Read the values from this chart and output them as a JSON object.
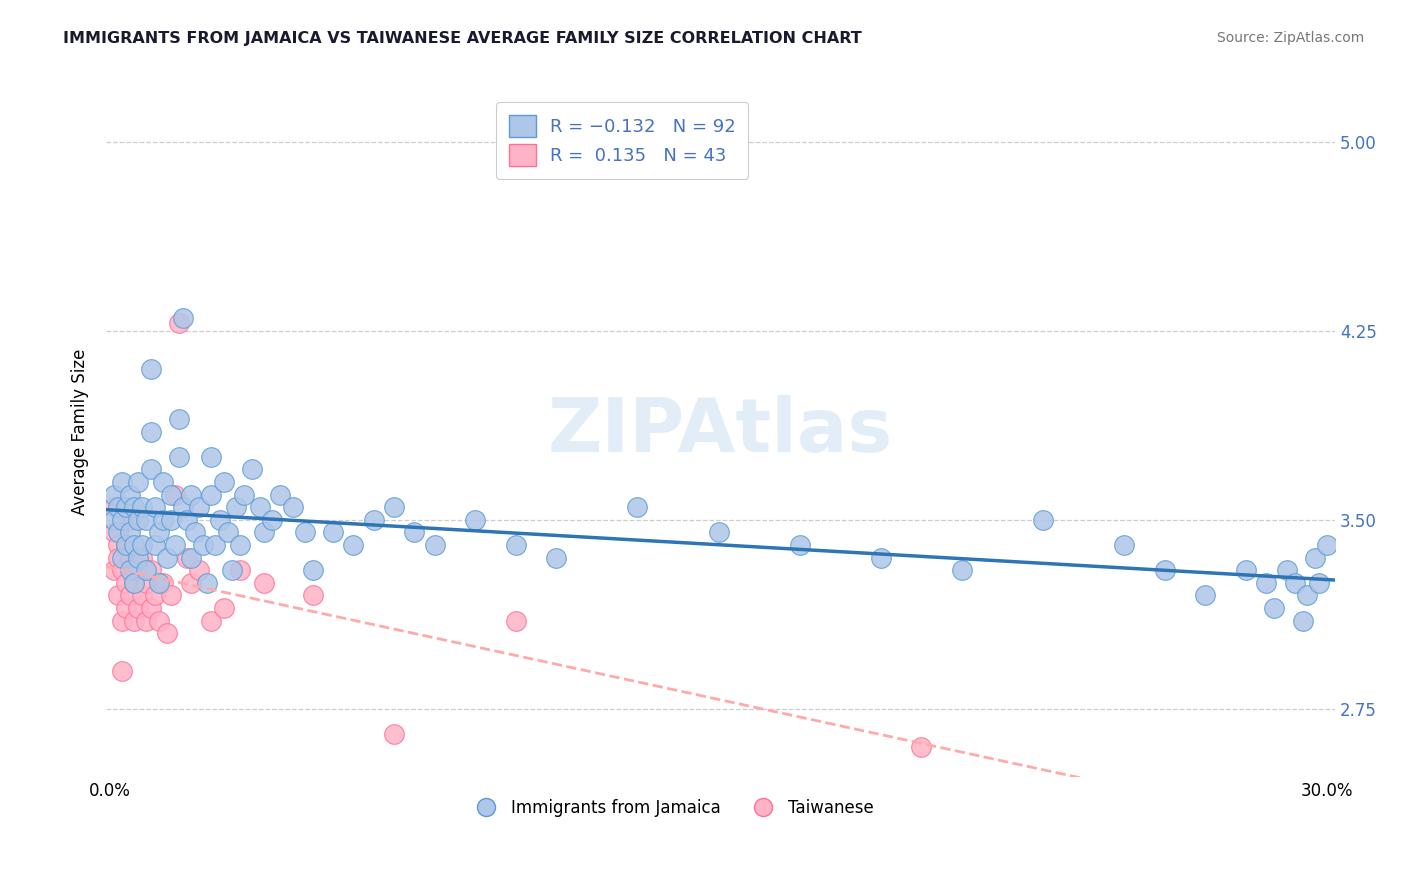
{
  "title": "IMMIGRANTS FROM JAMAICA VS TAIWANESE AVERAGE FAMILY SIZE CORRELATION CHART",
  "source": "Source: ZipAtlas.com",
  "ylabel": "Average Family Size",
  "xlim": [
    -0.001,
    0.302
  ],
  "ylim": [
    2.48,
    5.22
  ],
  "yticks": [
    2.75,
    3.5,
    4.25,
    5.0
  ],
  "ytick_labels": [
    "2.75",
    "3.50",
    "4.25",
    "5.00"
  ],
  "xticks": [
    0.0,
    0.05,
    0.1,
    0.15,
    0.2,
    0.25,
    0.3
  ],
  "ytick_color": "#4472c4",
  "background_color": "#ffffff",
  "grid_color": "#c8c8c8",
  "watermark_text": "ZIPAtlas",
  "jamaica": {
    "name": "Immigrants from Jamaica",
    "face_color": "#aec6e8",
    "edge_color": "#5b9bd5",
    "trend_color": "#2e75b6",
    "trend_ls": "-",
    "x": [
      0.001,
      0.001,
      0.002,
      0.002,
      0.003,
      0.003,
      0.003,
      0.004,
      0.004,
      0.005,
      0.005,
      0.005,
      0.006,
      0.006,
      0.006,
      0.007,
      0.007,
      0.007,
      0.008,
      0.008,
      0.009,
      0.009,
      0.01,
      0.01,
      0.01,
      0.011,
      0.011,
      0.012,
      0.012,
      0.013,
      0.013,
      0.014,
      0.015,
      0.015,
      0.016,
      0.017,
      0.017,
      0.018,
      0.018,
      0.019,
      0.02,
      0.02,
      0.021,
      0.022,
      0.023,
      0.024,
      0.025,
      0.025,
      0.026,
      0.027,
      0.028,
      0.029,
      0.03,
      0.031,
      0.032,
      0.033,
      0.035,
      0.037,
      0.038,
      0.04,
      0.042,
      0.045,
      0.048,
      0.05,
      0.055,
      0.06,
      0.065,
      0.07,
      0.075,
      0.08,
      0.09,
      0.1,
      0.11,
      0.13,
      0.15,
      0.17,
      0.19,
      0.21,
      0.23,
      0.25,
      0.26,
      0.27,
      0.28,
      0.285,
      0.287,
      0.29,
      0.292,
      0.294,
      0.295,
      0.297,
      0.298,
      0.3
    ],
    "y": [
      3.5,
      3.6,
      3.45,
      3.55,
      3.35,
      3.5,
      3.65,
      3.4,
      3.55,
      3.3,
      3.45,
      3.6,
      3.25,
      3.4,
      3.55,
      3.35,
      3.5,
      3.65,
      3.4,
      3.55,
      3.3,
      3.5,
      3.7,
      3.85,
      4.1,
      3.4,
      3.55,
      3.25,
      3.45,
      3.5,
      3.65,
      3.35,
      3.5,
      3.6,
      3.4,
      3.75,
      3.9,
      3.55,
      4.3,
      3.5,
      3.35,
      3.6,
      3.45,
      3.55,
      3.4,
      3.25,
      3.6,
      3.75,
      3.4,
      3.5,
      3.65,
      3.45,
      3.3,
      3.55,
      3.4,
      3.6,
      3.7,
      3.55,
      3.45,
      3.5,
      3.6,
      3.55,
      3.45,
      3.3,
      3.45,
      3.4,
      3.5,
      3.55,
      3.45,
      3.4,
      3.5,
      3.4,
      3.35,
      3.55,
      3.45,
      3.4,
      3.35,
      3.3,
      3.5,
      3.4,
      3.3,
      3.2,
      3.3,
      3.25,
      3.15,
      3.3,
      3.25,
      3.1,
      3.2,
      3.35,
      3.25,
      3.4
    ]
  },
  "taiwanese": {
    "name": "Taiwanese",
    "face_color": "#ffb3c6",
    "edge_color": "#ff7096",
    "trend_color": "#ffaaaa",
    "trend_ls": "--",
    "x": [
      0.001,
      0.001,
      0.001,
      0.002,
      0.002,
      0.002,
      0.003,
      0.003,
      0.003,
      0.004,
      0.004,
      0.004,
      0.005,
      0.005,
      0.005,
      0.006,
      0.006,
      0.007,
      0.007,
      0.008,
      0.008,
      0.009,
      0.009,
      0.01,
      0.01,
      0.011,
      0.012,
      0.013,
      0.014,
      0.015,
      0.016,
      0.017,
      0.019,
      0.02,
      0.022,
      0.025,
      0.028,
      0.032,
      0.038,
      0.05,
      0.07,
      0.1,
      0.2
    ],
    "y": [
      3.3,
      3.45,
      3.55,
      3.2,
      3.4,
      3.35,
      2.9,
      3.1,
      3.3,
      3.25,
      3.15,
      3.4,
      3.2,
      3.35,
      3.5,
      3.1,
      3.25,
      3.3,
      3.15,
      3.2,
      3.35,
      3.1,
      3.25,
      3.15,
      3.3,
      3.2,
      3.1,
      3.25,
      3.05,
      3.2,
      3.6,
      4.28,
      3.35,
      3.25,
      3.3,
      3.1,
      3.15,
      3.3,
      3.25,
      3.2,
      2.65,
      3.1,
      2.6
    ]
  }
}
